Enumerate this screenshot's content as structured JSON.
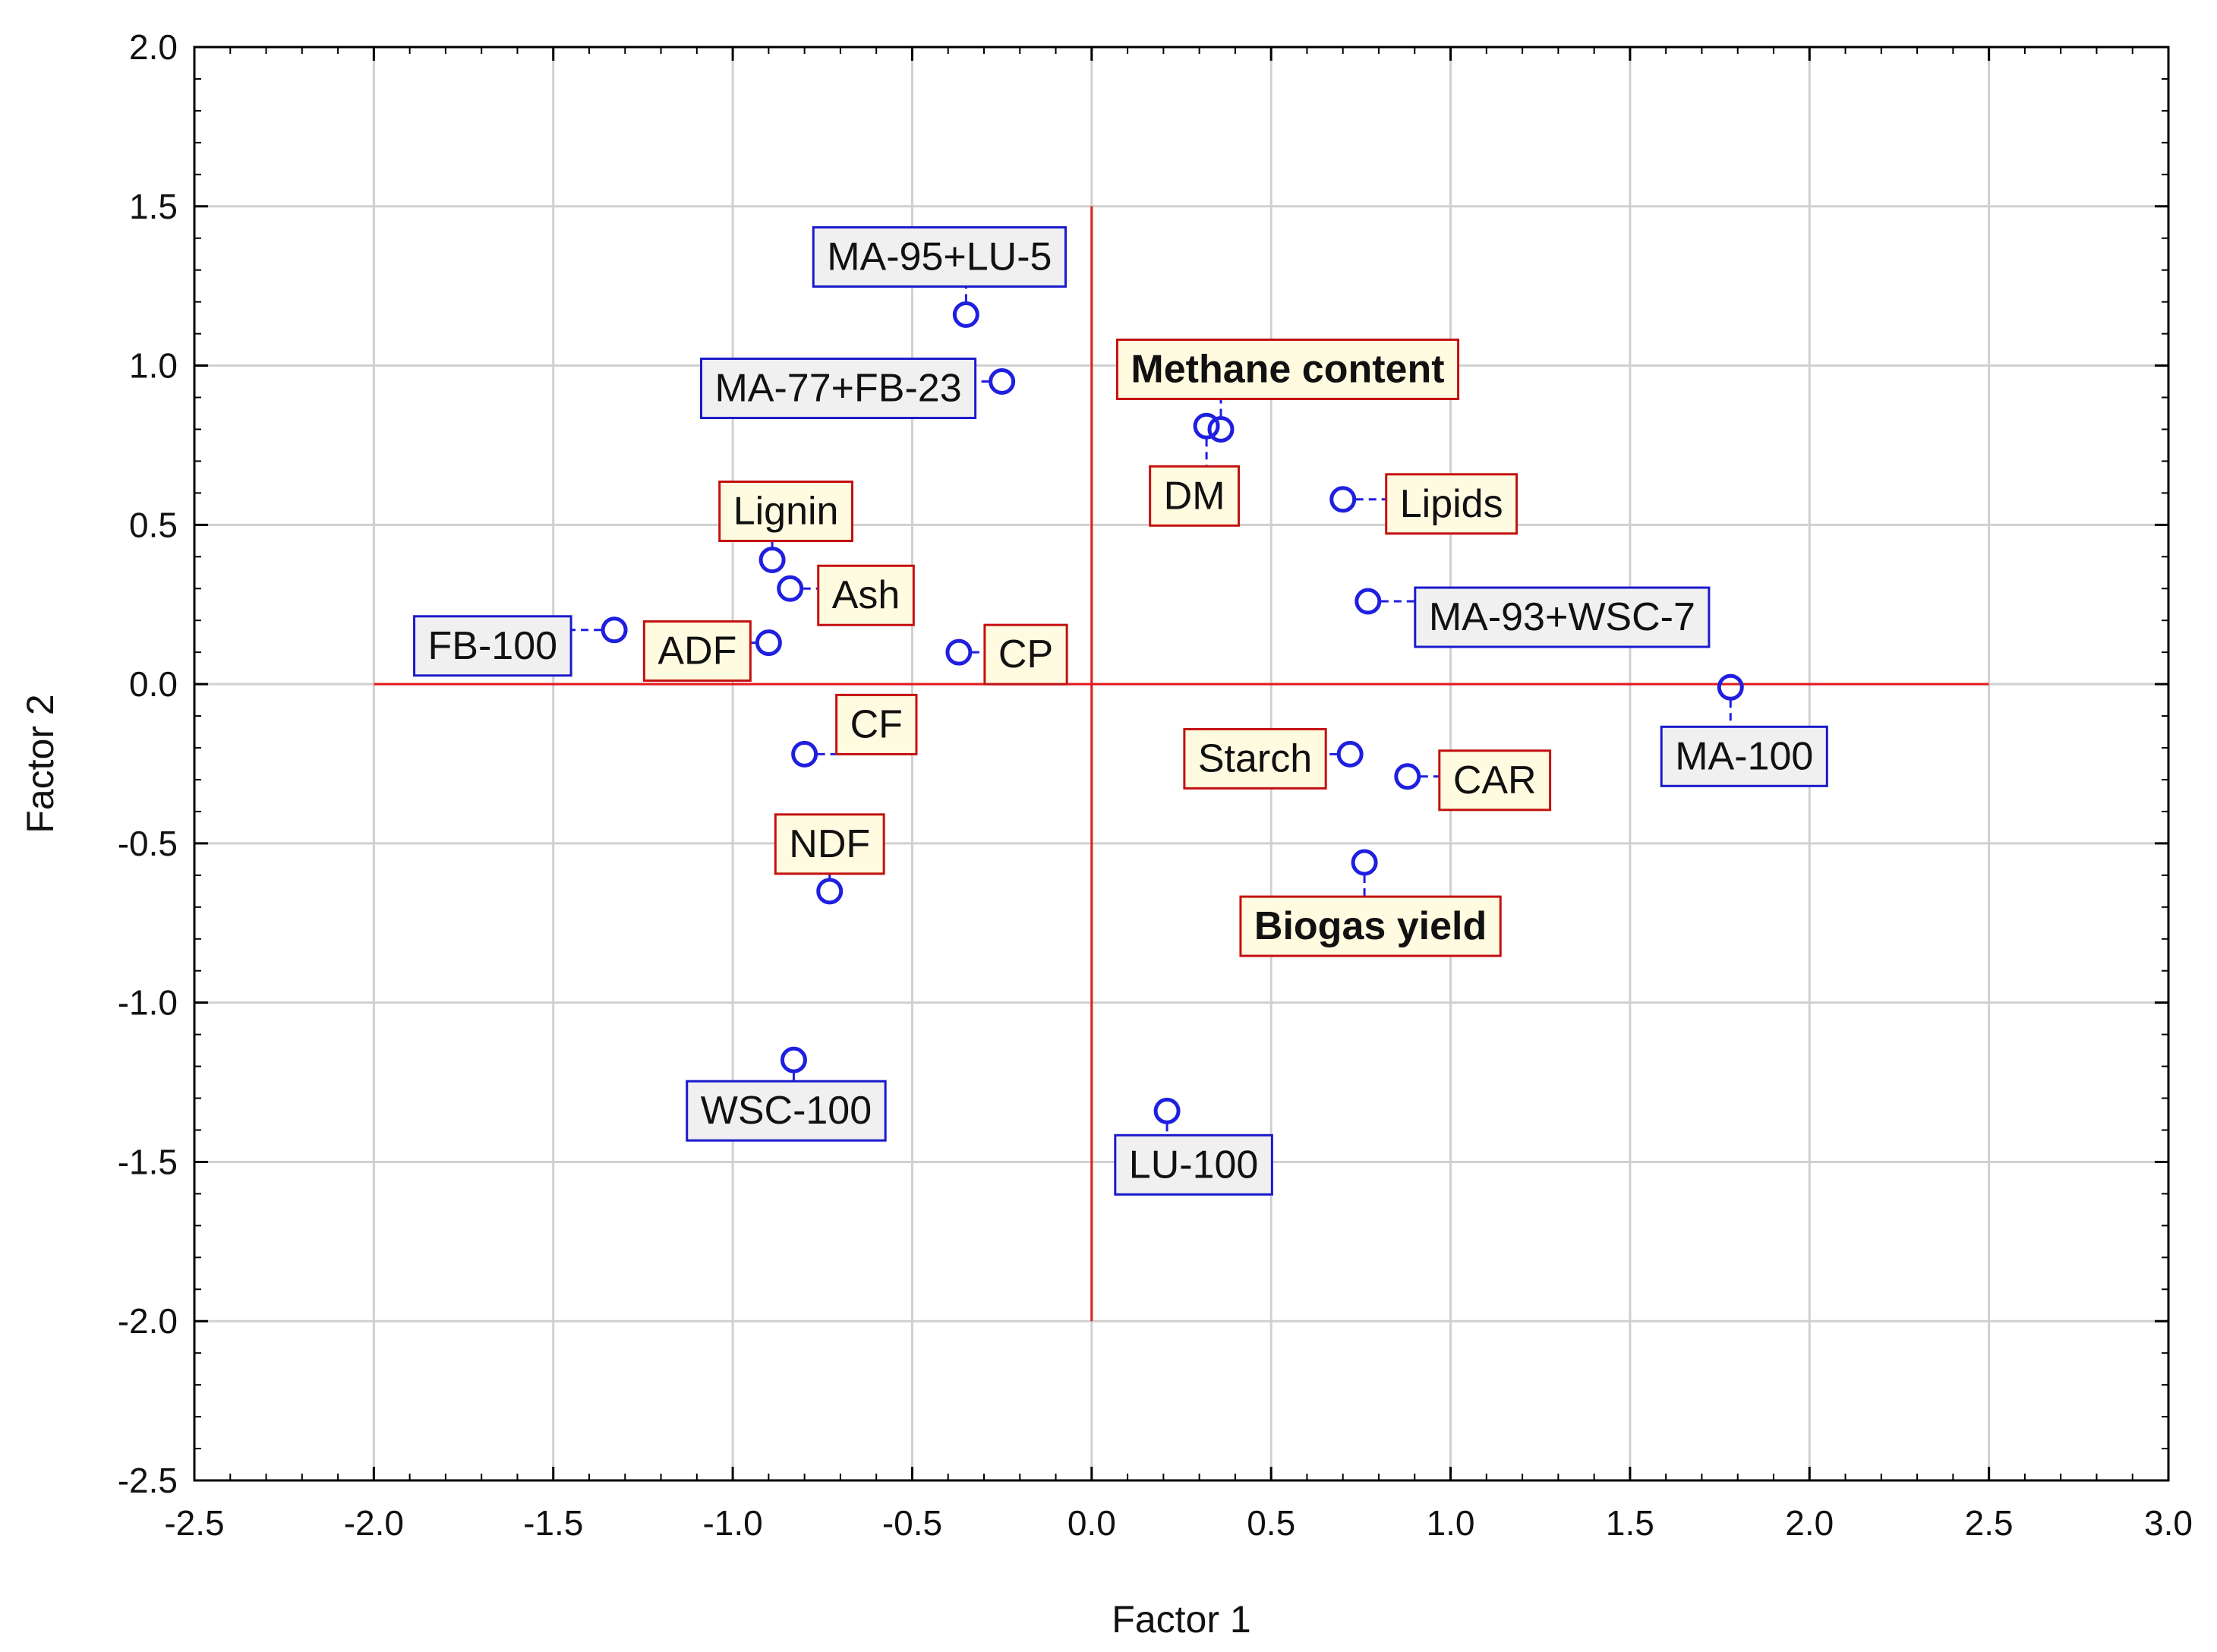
{
  "chart_data": {
    "type": "scatter",
    "title": "",
    "xlabel": "Factor 1",
    "ylabel": "Factor 2",
    "xlim": [
      -2.5,
      3.0
    ],
    "ylim": [
      -2.5,
      2.0
    ],
    "xticks": [
      "-2.5",
      "-2.0",
      "-1.5",
      "-1.0",
      "-0.5",
      "0.0",
      "0.5",
      "1.0",
      "1.5",
      "2.0",
      "2.5",
      "3.0"
    ],
    "yticks": [
      "2.0",
      "1.5",
      "1.0",
      "0.5",
      "0.0",
      "-0.5",
      "-1.0",
      "-1.5",
      "-2.0",
      "-2.5"
    ],
    "grid": true,
    "reference_lines": {
      "x_zero": [
        -2.0,
        2.5
      ],
      "y_zero": [
        -2.0,
        1.5
      ],
      "color": "#e31a1c"
    },
    "marker_color": "#1f1fe0",
    "points": [
      {
        "label": "MA-95+LU-5",
        "x": -0.35,
        "y": 1.16,
        "group": "sample"
      },
      {
        "label": "MA-77+FB-23",
        "x": -0.25,
        "y": 0.95,
        "group": "sample"
      },
      {
        "label": "FB-100",
        "x": -1.33,
        "y": 0.17,
        "group": "sample"
      },
      {
        "label": "MA-93+WSC-7",
        "x": 0.77,
        "y": 0.26,
        "group": "sample"
      },
      {
        "label": "MA-100",
        "x": 1.78,
        "y": -0.01,
        "group": "sample"
      },
      {
        "label": "WSC-100",
        "x": -0.83,
        "y": -1.18,
        "group": "sample"
      },
      {
        "label": "LU-100",
        "x": 0.21,
        "y": -1.34,
        "group": "sample"
      },
      {
        "label": "Methane content",
        "x": 0.36,
        "y": 0.8,
        "group": "variable",
        "bold": true
      },
      {
        "label": "DM",
        "x": 0.32,
        "y": 0.81,
        "group": "variable"
      },
      {
        "label": "Lipids",
        "x": 0.7,
        "y": 0.58,
        "group": "variable"
      },
      {
        "label": "Lignin",
        "x": -0.89,
        "y": 0.39,
        "group": "variable"
      },
      {
        "label": "Ash",
        "x": -0.84,
        "y": 0.3,
        "group": "variable"
      },
      {
        "label": "ADF",
        "x": -0.9,
        "y": 0.13,
        "group": "variable"
      },
      {
        "label": "CP",
        "x": -0.37,
        "y": 0.1,
        "group": "variable"
      },
      {
        "label": "CF",
        "x": -0.8,
        "y": -0.22,
        "group": "variable"
      },
      {
        "label": "NDF",
        "x": -0.73,
        "y": -0.65,
        "group": "variable"
      },
      {
        "label": "Starch",
        "x": 0.72,
        "y": -0.22,
        "group": "variable"
      },
      {
        "label": "CAR",
        "x": 0.88,
        "y": -0.29,
        "group": "variable"
      },
      {
        "label": "Biogas yield",
        "x": 0.76,
        "y": -0.56,
        "group": "variable",
        "bold": true
      }
    ],
    "label_styles": {
      "sample": {
        "border": "#1a1acc",
        "fill": "#f0f0f0"
      },
      "variable": {
        "border": "#c41010",
        "fill": "#fffbe0"
      }
    }
  }
}
